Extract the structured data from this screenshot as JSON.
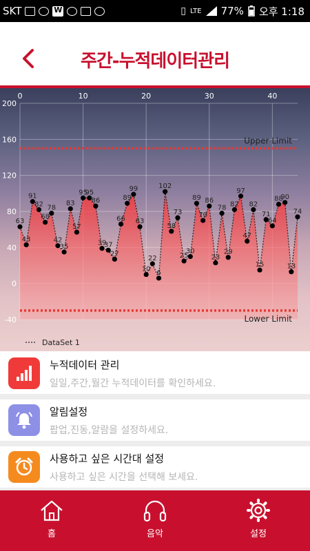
{
  "status_bar": {
    "carrier": "SKT",
    "network": "LTE",
    "battery": "77%",
    "time": "오후 1:18"
  },
  "header": {
    "title": "주간-누적데이터관리",
    "back_icon": "chevron-left-icon"
  },
  "chart_data": {
    "type": "line",
    "x": [
      0,
      1,
      2,
      3,
      4,
      5,
      6,
      7,
      8,
      9,
      10,
      11,
      12,
      13,
      14,
      15,
      16,
      17,
      18,
      19,
      20,
      21,
      22,
      23,
      24,
      25,
      26,
      27,
      28,
      29,
      30,
      31,
      32,
      33,
      34,
      35,
      36,
      37,
      38,
      39,
      40,
      41,
      42,
      43,
      44
    ],
    "series": [
      {
        "name": "DataSet 1",
        "values": [
          63,
          43,
          91,
          82,
          68,
          78,
          42,
          35,
          83,
          57,
          95,
          95,
          86,
          39,
          37,
          27,
          66,
          89,
          99,
          63,
          10,
          22,
          6,
          102,
          58,
          73,
          25,
          30,
          89,
          70,
          86,
          23,
          78,
          29,
          82,
          97,
          47,
          82,
          15,
          71,
          64,
          88,
          90,
          13,
          74
        ]
      }
    ],
    "limits": [
      {
        "label": "Upper Limit",
        "value": 150
      },
      {
        "label": "Lower Limit",
        "value": -30
      }
    ],
    "x_ticks": [
      "0",
      "10",
      "20",
      "30",
      "40"
    ],
    "y_ticks": [
      "200",
      "160",
      "120",
      "80",
      "40",
      "0",
      "-40"
    ],
    "xlim": [
      0,
      44
    ],
    "ylim": [
      -40,
      200
    ],
    "grid": true,
    "legend": "bottom-left"
  },
  "menu": [
    {
      "title": "누적데이터 관리",
      "subtitle": "일일,주간,월간 누적데이터를 확인하세요.",
      "icon": "bar-chart-icon",
      "color": "#f03a3a"
    },
    {
      "title": "알림설정",
      "subtitle": "팝업,진동,알람을 설정하세요.",
      "icon": "bell-icon",
      "color": "#8e90e6"
    },
    {
      "title": "사용하고 싶은 시간대 설정",
      "subtitle": "사용하고 싶은 시간을 선택해 보세요.",
      "icon": "alarm-clock-icon",
      "color": "#f58a1f"
    }
  ],
  "tabs": [
    {
      "label": "홈",
      "icon": "home-icon"
    },
    {
      "label": "음악",
      "icon": "headphones-icon"
    },
    {
      "label": "설정",
      "icon": "gear-icon"
    }
  ]
}
